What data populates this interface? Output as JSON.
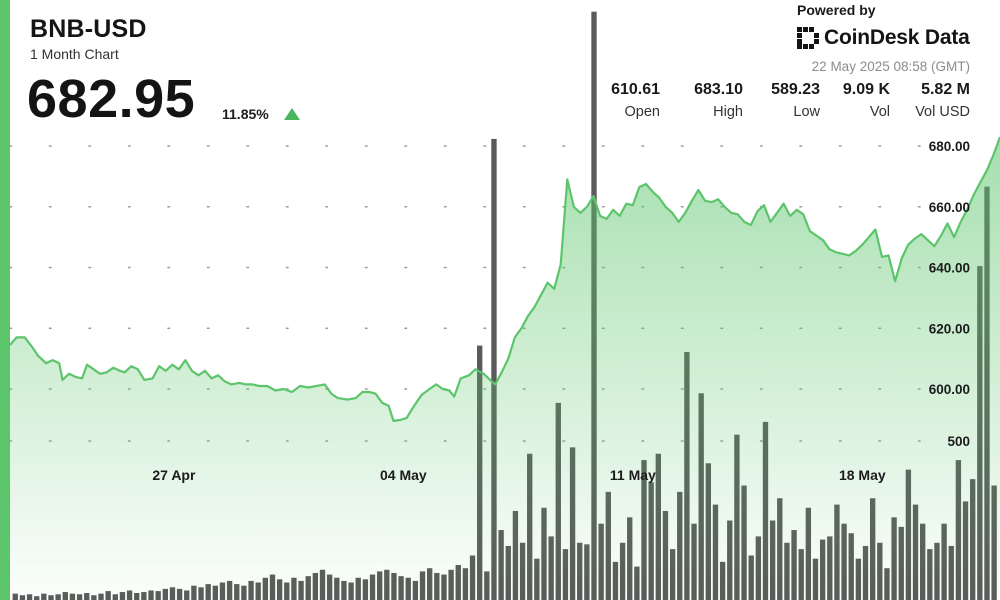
{
  "header": {
    "symbol": "BNB-USD",
    "period": "1 Month Chart",
    "price": "682.95",
    "change": "11.85%",
    "change_direction_icon": "triangle-up-icon",
    "up_color": "#5cc56b"
  },
  "branding": {
    "powered_by": "Powered by",
    "logo_text": "CoinDesk Data",
    "logo_icon": "coindesk-logo-icon",
    "timestamp": "22 May 2025 08:58 (GMT)"
  },
  "stats": [
    {
      "value": "610.61",
      "label": "Open"
    },
    {
      "value": "683.10",
      "label": "High"
    },
    {
      "value": "589.23",
      "label": "Low"
    },
    {
      "value": "9.09 K",
      "label": "Vol"
    },
    {
      "value": "5.82 M",
      "label": "Vol USD"
    }
  ],
  "chart_data": {
    "type": "area",
    "title": "",
    "xlabel": "",
    "ylabel": "",
    "ylim": [
      580,
      683
    ],
    "y_ticks": [
      "680.00",
      "660.00",
      "640.00",
      "620.00",
      "600.00"
    ],
    "volume_tick": "500",
    "x_ticks": [
      "27 Apr",
      "04 May",
      "11 May",
      "18 May"
    ],
    "x_tick_days": [
      5,
      12,
      19,
      26
    ],
    "day_range": [
      0,
      30.2
    ],
    "grid": "dotted horizontal",
    "line_color": "#5cc56b",
    "volume_color": "#5a5a5a",
    "price_series": [
      [
        0.0,
        614.5
      ],
      [
        0.2,
        617.0
      ],
      [
        0.45,
        617.0
      ],
      [
        0.7,
        613.5
      ],
      [
        0.85,
        611.0
      ],
      [
        1.1,
        608.5
      ],
      [
        1.3,
        609.5
      ],
      [
        1.5,
        608.5
      ],
      [
        1.6,
        603.0
      ],
      [
        1.8,
        605.0
      ],
      [
        2.0,
        604.0
      ],
      [
        2.2,
        603.5
      ],
      [
        2.35,
        608.0
      ],
      [
        2.55,
        606.5
      ],
      [
        2.75,
        605.0
      ],
      [
        2.95,
        605.5
      ],
      [
        3.15,
        607.0
      ],
      [
        3.35,
        606.0
      ],
      [
        3.5,
        605.5
      ],
      [
        3.7,
        607.5
      ],
      [
        3.9,
        606.5
      ],
      [
        4.1,
        603.0
      ],
      [
        4.35,
        603.5
      ],
      [
        4.55,
        607.5
      ],
      [
        4.75,
        606.0
      ],
      [
        4.95,
        608.0
      ],
      [
        5.15,
        606.5
      ],
      [
        5.35,
        609.5
      ],
      [
        5.55,
        606.0
      ],
      [
        5.75,
        604.5
      ],
      [
        5.95,
        606.0
      ],
      [
        6.15,
        603.5
      ],
      [
        6.35,
        604.5
      ],
      [
        6.55,
        602.5
      ],
      [
        6.75,
        601.5
      ],
      [
        7.0,
        602.0
      ],
      [
        7.2,
        601.5
      ],
      [
        7.4,
        601.5
      ],
      [
        7.6,
        601.0
      ],
      [
        7.85,
        601.0
      ],
      [
        8.1,
        599.5
      ],
      [
        8.35,
        600.0
      ],
      [
        8.6,
        599.0
      ],
      [
        8.85,
        601.0
      ],
      [
        9.1,
        600.5
      ],
      [
        9.35,
        601.0
      ],
      [
        9.6,
        601.5
      ],
      [
        9.8,
        598.5
      ],
      [
        10.0,
        597.0
      ],
      [
        10.3,
        596.5
      ],
      [
        10.55,
        597.0
      ],
      [
        10.75,
        599.0
      ],
      [
        10.95,
        599.0
      ],
      [
        11.15,
        598.5
      ],
      [
        11.35,
        595.5
      ],
      [
        11.55,
        594.5
      ],
      [
        11.7,
        589.5
      ],
      [
        11.9,
        589.8
      ],
      [
        12.1,
        590.5
      ],
      [
        12.3,
        594.0
      ],
      [
        12.55,
        598.0
      ],
      [
        12.8,
        600.0
      ],
      [
        13.0,
        601.5
      ],
      [
        13.2,
        600.0
      ],
      [
        13.4,
        599.5
      ],
      [
        13.55,
        597.5
      ],
      [
        13.75,
        603.5
      ],
      [
        14.0,
        604.5
      ],
      [
        14.2,
        606.5
      ],
      [
        14.45,
        605.0
      ],
      [
        14.65,
        603.0
      ],
      [
        14.8,
        601.5
      ],
      [
        15.0,
        605.5
      ],
      [
        15.2,
        610.0
      ],
      [
        15.4,
        617.0
      ],
      [
        15.6,
        620.0
      ],
      [
        15.8,
        624.0
      ],
      [
        16.0,
        627.0
      ],
      [
        16.2,
        631.0
      ],
      [
        16.4,
        635.0
      ],
      [
        16.6,
        633.0
      ],
      [
        16.8,
        641.0
      ],
      [
        17.0,
        669.0
      ],
      [
        17.2,
        660.0
      ],
      [
        17.4,
        658.0
      ],
      [
        17.6,
        660.0
      ],
      [
        17.8,
        663.5
      ],
      [
        18.0,
        657.0
      ],
      [
        18.2,
        656.0
      ],
      [
        18.4,
        659.0
      ],
      [
        18.6,
        657.0
      ],
      [
        18.8,
        661.0
      ],
      [
        19.0,
        660.5
      ],
      [
        19.2,
        666.5
      ],
      [
        19.4,
        667.5
      ],
      [
        19.6,
        665.0
      ],
      [
        19.8,
        663.0
      ],
      [
        20.0,
        660.0
      ],
      [
        20.2,
        658.0
      ],
      [
        20.4,
        655.0
      ],
      [
        20.6,
        658.0
      ],
      [
        20.8,
        662.0
      ],
      [
        21.0,
        665.5
      ],
      [
        21.2,
        662.0
      ],
      [
        21.4,
        661.5
      ],
      [
        21.6,
        662.5
      ],
      [
        21.8,
        660.0
      ],
      [
        22.0,
        658.0
      ],
      [
        22.2,
        657.5
      ],
      [
        22.4,
        655.0
      ],
      [
        22.6,
        654.0
      ],
      [
        22.8,
        658.5
      ],
      [
        23.0,
        660.5
      ],
      [
        23.2,
        655.0
      ],
      [
        23.4,
        658.0
      ],
      [
        23.6,
        661.0
      ],
      [
        23.8,
        657.0
      ],
      [
        24.0,
        659.0
      ],
      [
        24.2,
        657.5
      ],
      [
        24.4,
        652.0
      ],
      [
        24.6,
        650.5
      ],
      [
        24.8,
        649.0
      ],
      [
        25.0,
        646.0
      ],
      [
        25.2,
        645.0
      ],
      [
        25.4,
        644.5
      ],
      [
        25.6,
        644.0
      ],
      [
        25.8,
        645.5
      ],
      [
        26.0,
        647.5
      ],
      [
        26.2,
        650.0
      ],
      [
        26.4,
        652.5
      ],
      [
        26.6,
        643.5
      ],
      [
        26.8,
        644.0
      ],
      [
        27.0,
        635.5
      ],
      [
        27.2,
        643.0
      ],
      [
        27.4,
        647.5
      ],
      [
        27.6,
        649.5
      ],
      [
        27.8,
        651.0
      ],
      [
        28.0,
        649.0
      ],
      [
        28.2,
        647.0
      ],
      [
        28.4,
        650.5
      ],
      [
        28.6,
        654.5
      ],
      [
        28.8,
        650.0
      ],
      [
        29.0,
        655.0
      ],
      [
        29.2,
        659.0
      ],
      [
        29.4,
        664.0
      ],
      [
        29.6,
        668.0
      ],
      [
        29.8,
        672.0
      ],
      [
        30.0,
        677.0
      ],
      [
        30.2,
        682.95
      ]
    ],
    "volume_axis_max": 2100,
    "volume_series": [
      20,
      15,
      18,
      12,
      20,
      15,
      18,
      25,
      20,
      18,
      22,
      15,
      20,
      28,
      18,
      25,
      30,
      22,
      25,
      30,
      28,
      35,
      40,
      35,
      30,
      45,
      40,
      50,
      45,
      55,
      60,
      50,
      45,
      60,
      55,
      70,
      80,
      65,
      55,
      70,
      60,
      75,
      85,
      95,
      80,
      70,
      60,
      55,
      70,
      65,
      80,
      90,
      95,
      85,
      75,
      70,
      60,
      90,
      100,
      85,
      80,
      95,
      110,
      100,
      140,
      800,
      90,
      1450,
      220,
      170,
      280,
      180,
      460,
      130,
      290,
      200,
      620,
      160,
      480,
      180,
      175,
      1850,
      240,
      340,
      120,
      180,
      260,
      105,
      440,
      370,
      460,
      280,
      160,
      340,
      780,
      240,
      650,
      430,
      300,
      120,
      250,
      520,
      360,
      140,
      200,
      560,
      250,
      320,
      180,
      220,
      160,
      290,
      130,
      190,
      200,
      300,
      240,
      210,
      130,
      170,
      320,
      180,
      100,
      260,
      230,
      410,
      300,
      240,
      160,
      180,
      240,
      170,
      440,
      310,
      380,
      1050,
      1300,
      360
    ]
  }
}
